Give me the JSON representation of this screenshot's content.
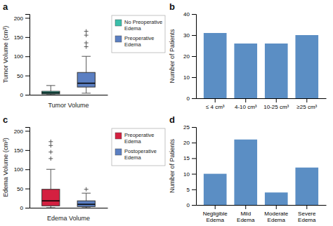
{
  "chart_data": [
    {
      "type": "box",
      "title": "a",
      "ylabel": "Tumor Volume (cm³)",
      "xlabel": "Tumor Volume",
      "ylim": [
        0,
        210
      ],
      "yticks": [
        0,
        50,
        100,
        150,
        200
      ],
      "legend": "right",
      "series": [
        {
          "name": "No Preoperative\nEdema",
          "color": "#3abfaa",
          "median": 5,
          "q1": 2,
          "q3": 9,
          "whislo": 0,
          "whishi": 24,
          "fliers": []
        },
        {
          "name": "Preoperative\nEdema",
          "color": "#5b7fc2",
          "median": 30,
          "q1": 20,
          "q3": 58,
          "whislo": 4,
          "whishi": 100,
          "fliers": [
            125,
            135,
            155,
            165
          ]
        }
      ]
    },
    {
      "type": "bar",
      "title": "b",
      "ylabel": "Number of Patients",
      "categories": [
        "≤ 4 cm³",
        "4-10 cm³",
        "10-25 cm³",
        "≥25 cm³"
      ],
      "values": [
        31,
        26,
        26,
        30
      ],
      "color": "#5b8ec4",
      "ylim": [
        0,
        40
      ],
      "yticks": [
        0,
        10,
        20,
        30,
        40
      ]
    },
    {
      "type": "box",
      "title": "c",
      "ylabel": "Edema Volume (cm³)",
      "xlabel": "Edema Volume",
      "ylim": [
        0,
        210
      ],
      "yticks": [
        0,
        50,
        100,
        150,
        200
      ],
      "legend": "right",
      "series": [
        {
          "name": "Preoperative\nEdema",
          "color": "#d42040",
          "median": 18,
          "q1": 5,
          "q3": 48,
          "whislo": 0,
          "whishi": 100,
          "fliers": [
            128,
            145,
            162,
            172
          ]
        },
        {
          "name": "Postoperative\nEdema",
          "color": "#5b7fc2",
          "median": 9,
          "q1": 3,
          "q3": 18,
          "whislo": 0,
          "whishi": 38,
          "fliers": [
            48
          ]
        }
      ]
    },
    {
      "type": "bar",
      "title": "d",
      "ylabel": "Number of Patients",
      "categories": [
        "Negligible\nEdema",
        "Mild\nEdema",
        "Moderate\nEdema",
        "Severe\nEdema"
      ],
      "values": [
        10,
        21,
        4,
        12
      ],
      "color": "#5b8ec4",
      "ylim": [
        0,
        25
      ],
      "yticks": [
        0,
        5,
        10,
        15,
        20,
        25
      ]
    }
  ]
}
